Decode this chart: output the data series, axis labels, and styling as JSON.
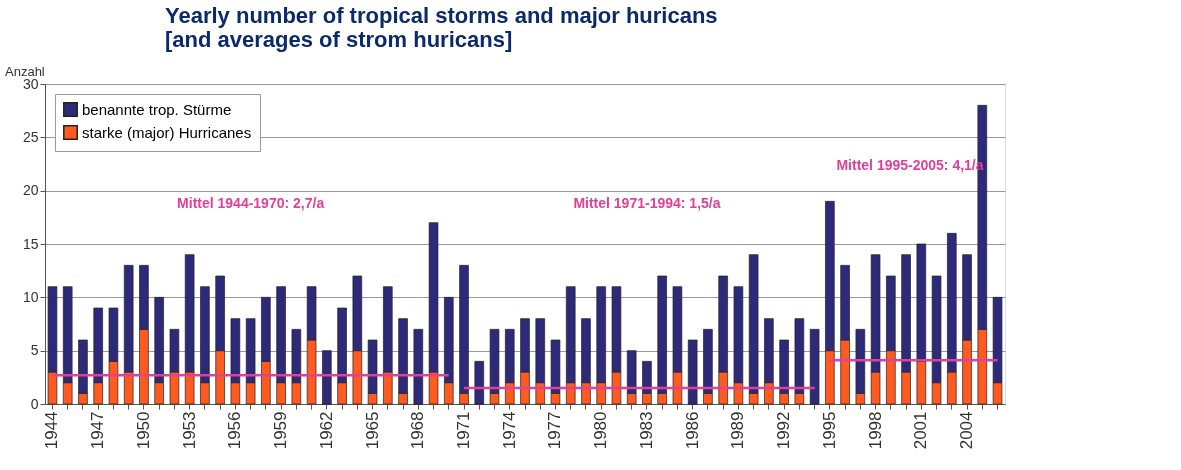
{
  "chart_data": {
    "type": "bar",
    "stacked": true,
    "title": "Yearly number of tropical storms and major huricans\n[and averages of strom huricans]",
    "ylabel": "Anzahl",
    "categories": [
      "1944",
      null,
      null,
      "1947",
      null,
      null,
      "1950",
      null,
      null,
      "1953",
      null,
      null,
      "1956",
      null,
      null,
      "1959",
      null,
      null,
      "1962",
      null,
      null,
      "1965",
      null,
      null,
      "1968",
      null,
      null,
      "1971",
      null,
      null,
      "1974",
      null,
      null,
      "1977",
      null,
      null,
      "1980",
      null,
      null,
      "1983",
      null,
      null,
      "1986",
      null,
      null,
      "1989",
      null,
      null,
      "1992",
      null,
      null,
      "1995",
      null,
      null,
      "1998",
      null,
      null,
      "2001",
      null,
      null,
      "2004",
      null,
      null
    ],
    "ylim": [
      0,
      30
    ],
    "yticks": [
      0,
      5,
      10,
      15,
      20,
      25,
      30
    ],
    "grid": "y",
    "legend": "top left",
    "series": [
      {
        "name": "starke (major) Hurricanes",
        "color": "#ff5a1f",
        "values": [
          3,
          2,
          1,
          2,
          4,
          3,
          7,
          2,
          3,
          3,
          2,
          5,
          2,
          2,
          4,
          2,
          2,
          6,
          0,
          2,
          5,
          1,
          3,
          1,
          0,
          3,
          2,
          1,
          0,
          1,
          2,
          3,
          2,
          1,
          2,
          2,
          2,
          3,
          1,
          1,
          1,
          3,
          0,
          1,
          3,
          2,
          1,
          2,
          1,
          1,
          0,
          5,
          6,
          1,
          3,
          5,
          3,
          4,
          2,
          3,
          6,
          7,
          2
        ]
      },
      {
        "name": "benannte trop. Stürme",
        "color": "#2e2a7a",
        "values": [
          8,
          9,
          5,
          7,
          5,
          10,
          6,
          8,
          4,
          11,
          9,
          7,
          6,
          6,
          6,
          9,
          5,
          5,
          5,
          7,
          7,
          5,
          8,
          7,
          7,
          14,
          8,
          12,
          4,
          6,
          5,
          5,
          6,
          5,
          9,
          6,
          9,
          8,
          4,
          3,
          11,
          8,
          6,
          6,
          9,
          9,
          13,
          6,
          5,
          7,
          7,
          14,
          7,
          6,
          11,
          7,
          11,
          11,
          10,
          13,
          8,
          21,
          8
        ]
      },
      {
        "type": "line",
        "name": "Mittel 1944-1970: 2,7/a",
        "color": "#e0409a",
        "values": [
          2.7,
          2.7,
          2.7,
          2.7,
          2.7,
          2.7,
          2.7,
          2.7,
          2.7,
          2.7,
          2.7,
          2.7,
          2.7,
          2.7,
          2.7,
          2.7,
          2.7,
          2.7,
          2.7,
          2.7,
          2.7,
          2.7,
          2.7,
          2.7,
          2.7,
          2.7,
          2.7,
          null,
          null,
          null,
          null,
          null,
          null,
          null,
          null,
          null,
          null,
          null,
          null,
          null,
          null,
          null,
          null,
          null,
          null,
          null,
          null,
          null,
          null,
          null,
          null,
          null,
          null,
          null,
          null,
          null,
          null,
          null,
          null,
          null,
          null,
          null,
          null
        ]
      },
      {
        "type": "line",
        "name": "Mittel 1971-1994: 1,5/a",
        "color": "#e0409a",
        "values": [
          null,
          null,
          null,
          null,
          null,
          null,
          null,
          null,
          null,
          null,
          null,
          null,
          null,
          null,
          null,
          null,
          null,
          null,
          null,
          null,
          null,
          null,
          null,
          null,
          null,
          null,
          null,
          1.5,
          1.5,
          1.5,
          1.5,
          1.5,
          1.5,
          1.5,
          1.5,
          1.5,
          1.5,
          1.5,
          1.5,
          1.5,
          1.5,
          1.5,
          1.5,
          1.5,
          1.5,
          1.5,
          1.5,
          1.5,
          1.5,
          1.5,
          1.5,
          null,
          null,
          null,
          null,
          null,
          null,
          null,
          null,
          null,
          null,
          null,
          null
        ]
      },
      {
        "type": "line",
        "name": "Mittel 1995-2005: 4,1/a",
        "color": "#e0409a",
        "values": [
          null,
          null,
          null,
          null,
          null,
          null,
          null,
          null,
          null,
          null,
          null,
          null,
          null,
          null,
          null,
          null,
          null,
          null,
          null,
          null,
          null,
          null,
          null,
          null,
          null,
          null,
          null,
          null,
          null,
          null,
          null,
          null,
          null,
          null,
          null,
          null,
          null,
          null,
          null,
          null,
          null,
          null,
          null,
          null,
          null,
          null,
          null,
          null,
          null,
          null,
          null,
          4.1,
          4.1,
          4.1,
          4.1,
          4.1,
          4.1,
          4.1,
          4.1,
          4.1,
          4.1,
          4.1,
          4.1
        ]
      }
    ]
  }
}
